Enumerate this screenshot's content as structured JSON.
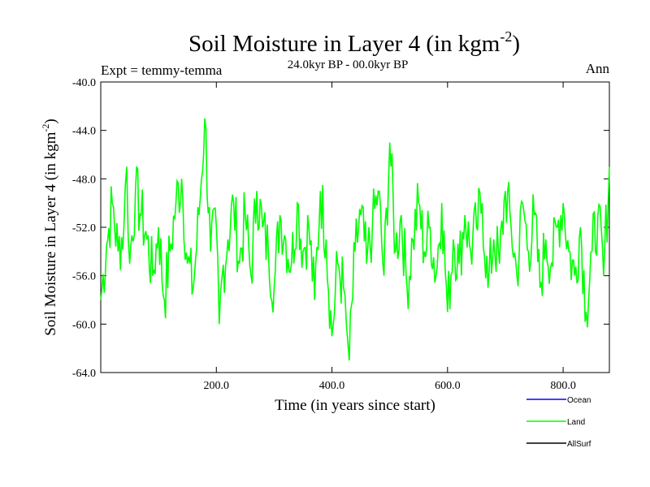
{
  "chart_data": {
    "type": "line",
    "title": "Soil Moisture in Layer 4 (in kgm",
    "title_sup": "-2",
    "title_end": ")",
    "subtitle": "24.0kyr BP - 00.0kyr BP",
    "expt_label": "Expt = temmy-temma",
    "season_label": "Ann",
    "xlabel": "Time (in years since start)",
    "ylabel": "Soil Moisture in Layer 4 (in kgm",
    "ylabel_sup": "-2",
    "ylabel_end": ")",
    "xlim": [
      0,
      880
    ],
    "ylim": [
      -64,
      -40
    ],
    "xticks": [
      200,
      400,
      600,
      800
    ],
    "xtick_labels": [
      "200.0",
      "400.0",
      "600.0",
      "800.0"
    ],
    "yticks": [
      -40,
      -44,
      -48,
      -52,
      -56,
      -60,
      -64
    ],
    "ytick_labels": [
      "-40.0",
      "-44.0",
      "-48.0",
      "-52.0",
      "-56.0",
      "-60.0",
      "-64.0"
    ],
    "legend": [
      {
        "name": "Ocean",
        "color": "#0000ff"
      },
      {
        "name": "Land",
        "color": "#00ff00"
      },
      {
        "name": "AllSurf",
        "color": "#000000"
      }
    ],
    "series": [
      {
        "name": "Land",
        "color": "#00ff00",
        "x": [
          0,
          10,
          20,
          30,
          40,
          45,
          50,
          60,
          70,
          80,
          90,
          100,
          110,
          120,
          130,
          140,
          150,
          160,
          170,
          180,
          190,
          200,
          205,
          210,
          220,
          230,
          240,
          250,
          260,
          270,
          280,
          290,
          300,
          310,
          320,
          330,
          340,
          350,
          360,
          370,
          380,
          390,
          400,
          410,
          420,
          425,
          430,
          440,
          450,
          460,
          470,
          480,
          490,
          500,
          510,
          520,
          530,
          540,
          550,
          560,
          570,
          580,
          590,
          600,
          610,
          620,
          630,
          640,
          650,
          660,
          670,
          680,
          690,
          700,
          710,
          720,
          730,
          740,
          750,
          760,
          770,
          780,
          790,
          800,
          810,
          820,
          830,
          840,
          850,
          860,
          870,
          880
        ],
        "y": [
          -58,
          -53.5,
          -50,
          -54,
          -52,
          -47,
          -55,
          -49,
          -51,
          -53,
          -56,
          -52,
          -58,
          -54,
          -50,
          -48,
          -55,
          -57,
          -51,
          -43,
          -54,
          -52,
          -60,
          -56,
          -53,
          -50,
          -55,
          -51,
          -56,
          -49,
          -52,
          -54,
          -57,
          -51,
          -53,
          -55,
          -50,
          -54,
          -52,
          -58,
          -49,
          -53,
          -61,
          -55,
          -57,
          -60,
          -63,
          -54,
          -51,
          -55,
          -52,
          -49,
          -56,
          -45,
          -54,
          -51,
          -57,
          -53,
          -50,
          -54,
          -52,
          -56,
          -50,
          -59,
          -53,
          -55,
          -51,
          -54,
          -52,
          -50,
          -57,
          -53,
          -55,
          -49,
          -52,
          -56,
          -50,
          -54,
          -51,
          -57,
          -53,
          -55,
          -52,
          -50,
          -54,
          -56,
          -52,
          -59,
          -54,
          -51,
          -56,
          -47
        ]
      }
    ]
  }
}
